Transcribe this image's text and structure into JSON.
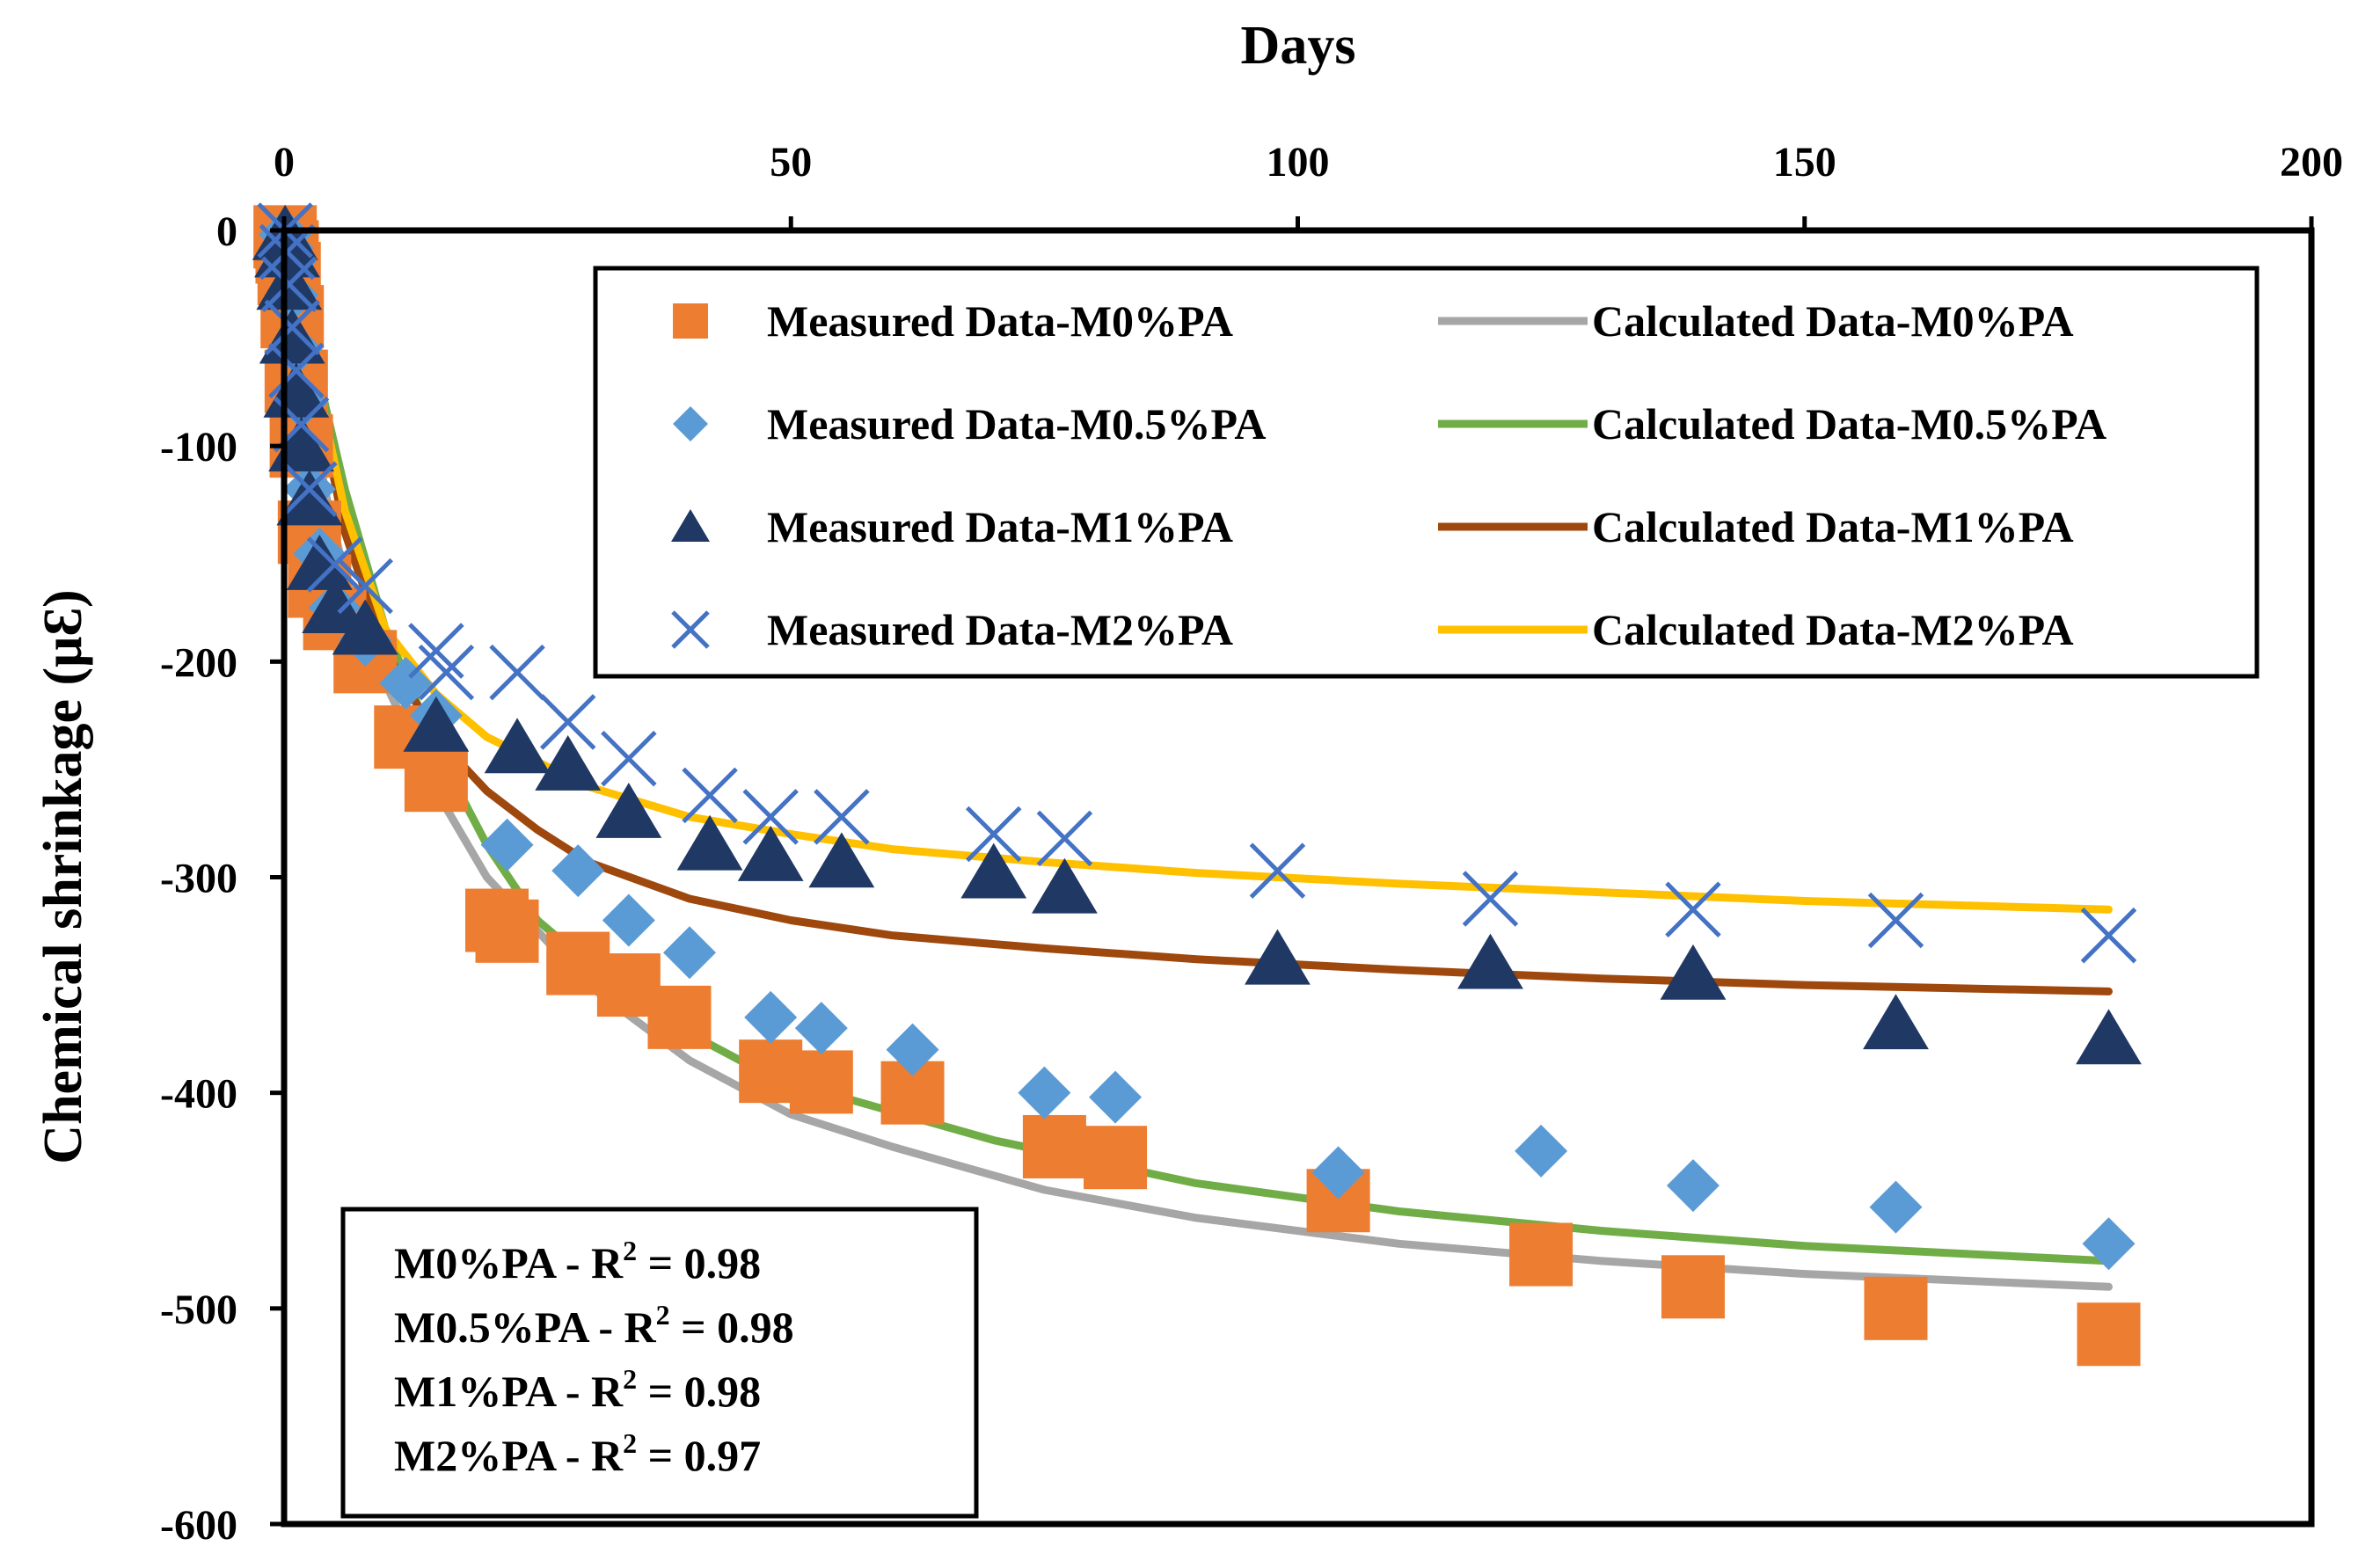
{
  "chart_data": {
    "type": "scatter",
    "title": "",
    "xlabel": "Days",
    "ylabel": "Chemical shrinkage (μƐ)",
    "xlim": [
      0,
      200
    ],
    "ylim": [
      -600,
      0
    ],
    "x_ticks": [
      "0",
      "50",
      "100",
      "150",
      "200"
    ],
    "y_ticks": [
      "0",
      "-100",
      "-200",
      "-300",
      "-400",
      "-500",
      "-600"
    ],
    "x_axis_position": "top",
    "grid": false,
    "legend_position": "top-right",
    "series": [
      {
        "name": "Measured Data-M0%PA",
        "kind": "measured",
        "marker": "square",
        "color": "#ED7D31",
        "points": [
          [
            0.1,
            -3
          ],
          [
            0.3,
            -10
          ],
          [
            0.5,
            -20
          ],
          [
            0.8,
            -40
          ],
          [
            1.2,
            -70
          ],
          [
            1.7,
            -100
          ],
          [
            2.5,
            -140
          ],
          [
            3.5,
            -165
          ],
          [
            5,
            -180
          ],
          [
            8,
            -200
          ],
          [
            12,
            -235
          ],
          [
            15,
            -255
          ],
          [
            21,
            -320
          ],
          [
            22,
            -325
          ],
          [
            29,
            -340
          ],
          [
            34,
            -350
          ],
          [
            39,
            -365
          ],
          [
            48,
            -390
          ],
          [
            53,
            -395
          ],
          [
            62,
            -400
          ],
          [
            76,
            -425
          ],
          [
            82,
            -430
          ],
          [
            104,
            -450
          ],
          [
            124,
            -475
          ],
          [
            139,
            -490
          ],
          [
            159,
            -500
          ],
          [
            180,
            -512
          ]
        ]
      },
      {
        "name": "Measured Data-M0.5%PA",
        "kind": "measured",
        "marker": "diamond",
        "color": "#5B9BD5",
        "points": [
          [
            0.1,
            -2
          ],
          [
            0.3,
            -8
          ],
          [
            0.5,
            -15
          ],
          [
            0.8,
            -30
          ],
          [
            1.2,
            -55
          ],
          [
            1.7,
            -80
          ],
          [
            2.5,
            -120
          ],
          [
            3.5,
            -150
          ],
          [
            5,
            -175
          ],
          [
            8,
            -190
          ],
          [
            12,
            -210
          ],
          [
            15,
            -225
          ],
          [
            22,
            -285
          ],
          [
            29,
            -297
          ],
          [
            34,
            -320
          ],
          [
            40,
            -335
          ],
          [
            48,
            -365
          ],
          [
            53,
            -370
          ],
          [
            62,
            -380
          ],
          [
            75,
            -400
          ],
          [
            82,
            -402
          ],
          [
            104,
            -437
          ],
          [
            124,
            -427
          ],
          [
            139,
            -443
          ],
          [
            159,
            -453
          ],
          [
            180,
            -470
          ]
        ]
      },
      {
        "name": "Measured Data-M1%PA",
        "kind": "measured",
        "marker": "triangle",
        "color": "#203864",
        "points": [
          [
            0.1,
            -2
          ],
          [
            0.3,
            -10
          ],
          [
            0.5,
            -25
          ],
          [
            0.8,
            -50
          ],
          [
            1.2,
            -75
          ],
          [
            1.7,
            -100
          ],
          [
            2.5,
            -125
          ],
          [
            3.5,
            -155
          ],
          [
            5,
            -175
          ],
          [
            8,
            -185
          ],
          [
            15,
            -230
          ],
          [
            23,
            -240
          ],
          [
            28,
            -248
          ],
          [
            34,
            -270
          ],
          [
            42,
            -285
          ],
          [
            48,
            -290
          ],
          [
            55,
            -293
          ],
          [
            70,
            -298
          ],
          [
            77,
            -305
          ],
          [
            98,
            -338
          ],
          [
            119,
            -340
          ],
          [
            139,
            -345
          ],
          [
            159,
            -368
          ],
          [
            180,
            -375
          ]
        ]
      },
      {
        "name": "Measured Data-M2%PA",
        "kind": "measured",
        "marker": "x",
        "color": "#4472C4",
        "points": [
          [
            0.1,
            0
          ],
          [
            0.3,
            -10
          ],
          [
            0.5,
            -25
          ],
          [
            0.8,
            -45
          ],
          [
            1.2,
            -65
          ],
          [
            1.7,
            -90
          ],
          [
            2.5,
            -120
          ],
          [
            5,
            -155
          ],
          [
            8,
            -165
          ],
          [
            15,
            -195
          ],
          [
            16,
            -205
          ],
          [
            23,
            -205
          ],
          [
            28,
            -228
          ],
          [
            34,
            -245
          ],
          [
            42,
            -262
          ],
          [
            48,
            -272
          ],
          [
            55,
            -272
          ],
          [
            70,
            -280
          ],
          [
            77,
            -282
          ],
          [
            98,
            -297
          ],
          [
            119,
            -310
          ],
          [
            139,
            -315
          ],
          [
            159,
            -320
          ],
          [
            180,
            -327
          ]
        ]
      },
      {
        "name": "Calculated Data-M0%PA",
        "kind": "calculated",
        "color": "#A6A6A6",
        "points": [
          [
            0,
            0
          ],
          [
            2,
            -60
          ],
          [
            4,
            -120
          ],
          [
            6,
            -160
          ],
          [
            10,
            -210
          ],
          [
            15,
            -260
          ],
          [
            20,
            -300
          ],
          [
            30,
            -350
          ],
          [
            40,
            -385
          ],
          [
            50,
            -410
          ],
          [
            60,
            -425
          ],
          [
            75,
            -445
          ],
          [
            90,
            -458
          ],
          [
            110,
            -470
          ],
          [
            130,
            -478
          ],
          [
            150,
            -484
          ],
          [
            180,
            -490
          ]
        ]
      },
      {
        "name": "Calculated Data-M0.5%PA",
        "kind": "calculated",
        "color": "#70AD47",
        "points": [
          [
            0,
            0
          ],
          [
            3,
            -60
          ],
          [
            6,
            -120
          ],
          [
            10,
            -185
          ],
          [
            15,
            -240
          ],
          [
            20,
            -285
          ],
          [
            25,
            -320
          ],
          [
            35,
            -360
          ],
          [
            45,
            -385
          ],
          [
            55,
            -402
          ],
          [
            70,
            -422
          ],
          [
            90,
            -442
          ],
          [
            110,
            -455
          ],
          [
            130,
            -464
          ],
          [
            150,
            -471
          ],
          [
            180,
            -478
          ]
        ]
      },
      {
        "name": "Calculated Data-M1%PA",
        "kind": "calculated",
        "color": "#9E480E",
        "points": [
          [
            0,
            0
          ],
          [
            3,
            -70
          ],
          [
            6,
            -140
          ],
          [
            10,
            -195
          ],
          [
            15,
            -235
          ],
          [
            20,
            -260
          ],
          [
            25,
            -278
          ],
          [
            30,
            -293
          ],
          [
            40,
            -310
          ],
          [
            50,
            -320
          ],
          [
            60,
            -327
          ],
          [
            75,
            -333
          ],
          [
            90,
            -338
          ],
          [
            110,
            -343
          ],
          [
            130,
            -347
          ],
          [
            150,
            -350
          ],
          [
            180,
            -353
          ]
        ]
      },
      {
        "name": "Calculated Data-M2%PA",
        "kind": "calculated",
        "color": "#FFC000",
        "points": [
          [
            0,
            0
          ],
          [
            3,
            -65
          ],
          [
            6,
            -130
          ],
          [
            10,
            -185
          ],
          [
            15,
            -215
          ],
          [
            20,
            -235
          ],
          [
            30,
            -258
          ],
          [
            40,
            -272
          ],
          [
            50,
            -280
          ],
          [
            60,
            -287
          ],
          [
            75,
            -293
          ],
          [
            90,
            -298
          ],
          [
            110,
            -303
          ],
          [
            130,
            -307
          ],
          [
            150,
            -311
          ],
          [
            180,
            -315
          ]
        ]
      }
    ],
    "annotations": [
      {
        "label": "M0%PA - R",
        "sup": "2",
        "value": " = 0.98"
      },
      {
        "label": "M0.5%PA - R",
        "sup": "2",
        "value": " = 0.98"
      },
      {
        "label": "M1%PA - R",
        "sup": "2",
        "value": " = 0.98"
      },
      {
        "label": "M2%PA - R",
        "sup": "2",
        "value": " = 0.97"
      }
    ]
  }
}
